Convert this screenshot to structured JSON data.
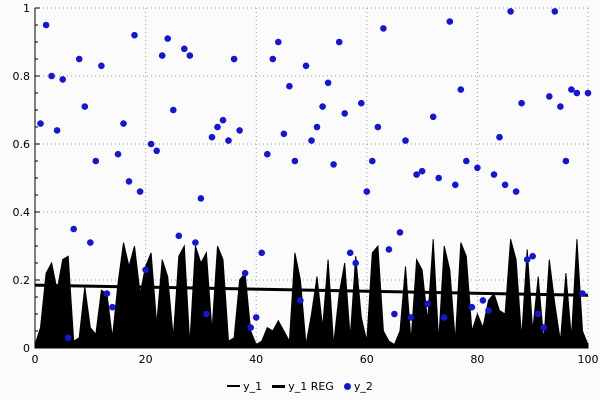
{
  "chart_data": {
    "type": "mixed",
    "title": "",
    "xlabel": "",
    "ylabel": "",
    "xlim": [
      0,
      100
    ],
    "ylim": [
      0,
      1
    ],
    "x_ticks": [
      "0",
      "20",
      "40",
      "60",
      "80",
      "100"
    ],
    "y_ticks": [
      "0",
      "0.2",
      "0.4",
      "0.6",
      "0.8",
      "1"
    ],
    "grid": "dotted",
    "legend_position": "bottom-center",
    "colors": {
      "area": "#000000",
      "regression": "#000000",
      "scatter": "#1515d6",
      "grid": "#9a9a9a",
      "axis": "#000000",
      "background": "#fbfbfb"
    },
    "legend": [
      {
        "label": "y_1",
        "swatch": "line"
      },
      {
        "label": "y_1 REG",
        "swatch": "thickline"
      },
      {
        "label": "y_2",
        "swatch": "dot"
      }
    ],
    "series": [
      {
        "name": "y_1",
        "type": "area",
        "x_range": [
          0,
          100,
          1
        ],
        "y": [
          0.01,
          0.06,
          0.22,
          0.25,
          0.17,
          0.26,
          0.27,
          0.02,
          0.03,
          0.18,
          0.06,
          0.04,
          0.17,
          0.16,
          0.03,
          0.19,
          0.31,
          0.24,
          0.3,
          0.16,
          0.24,
          0.28,
          0.07,
          0.26,
          0.21,
          0.03,
          0.27,
          0.3,
          0.01,
          0.3,
          0.25,
          0.28,
          0.05,
          0.3,
          0.26,
          0.02,
          0.03,
          0.2,
          0.22,
          0.05,
          0.01,
          0.02,
          0.06,
          0.05,
          0.08,
          0.05,
          0.02,
          0.28,
          0.2,
          0.01,
          0.1,
          0.21,
          0.06,
          0.26,
          0.01,
          0.16,
          0.25,
          0.03,
          0.27,
          0.09,
          0.02,
          0.28,
          0.3,
          0.05,
          0.02,
          0.01,
          0.05,
          0.24,
          0.02,
          0.26,
          0.23,
          0.08,
          0.32,
          0.02,
          0.3,
          0.23,
          0.02,
          0.31,
          0.27,
          0.05,
          0.1,
          0.06,
          0.14,
          0.16,
          0.11,
          0.1,
          0.32,
          0.26,
          0.03,
          0.29,
          0.05,
          0.21,
          0.02,
          0.26,
          0.13,
          0.02,
          0.22,
          0.03,
          0.32,
          0.05,
          0.01
        ]
      },
      {
        "name": "y_1 REG",
        "type": "line",
        "x": [
          0,
          100
        ],
        "y": [
          0.185,
          0.155
        ]
      },
      {
        "name": "y_2",
        "type": "scatter",
        "x_range": [
          1,
          100,
          1
        ],
        "y": [
          0.66,
          0.95,
          0.8,
          0.64,
          0.79,
          0.03,
          0.35,
          0.85,
          0.71,
          0.31,
          0.55,
          0.83,
          0.16,
          0.12,
          0.57,
          0.66,
          0.49,
          0.92,
          0.46,
          0.23,
          0.6,
          0.58,
          0.86,
          0.91,
          0.7,
          0.33,
          0.88,
          0.86,
          0.31,
          0.44,
          0.1,
          0.62,
          0.65,
          0.67,
          0.61,
          0.85,
          0.64,
          0.22,
          0.06,
          0.09,
          0.28,
          0.57,
          0.85,
          0.9,
          0.63,
          0.77,
          0.55,
          0.14,
          0.83,
          0.61,
          0.65,
          0.71,
          0.78,
          0.54,
          0.9,
          0.69,
          0.28,
          0.25,
          0.72,
          0.46,
          0.55,
          0.65,
          0.94,
          0.29,
          0.1,
          0.34,
          0.61,
          0.09,
          0.51,
          0.52,
          0.13,
          0.68,
          0.5,
          0.09,
          0.96,
          0.48,
          0.76,
          0.55,
          0.12,
          0.53,
          0.14,
          0.11,
          0.51,
          0.62,
          0.48,
          0.99,
          0.46,
          0.72,
          0.26,
          0.27,
          0.1,
          0.06,
          0.74,
          0.99,
          0.71,
          0.55,
          0.76,
          0.75,
          0.16,
          0.75
        ]
      }
    ]
  }
}
